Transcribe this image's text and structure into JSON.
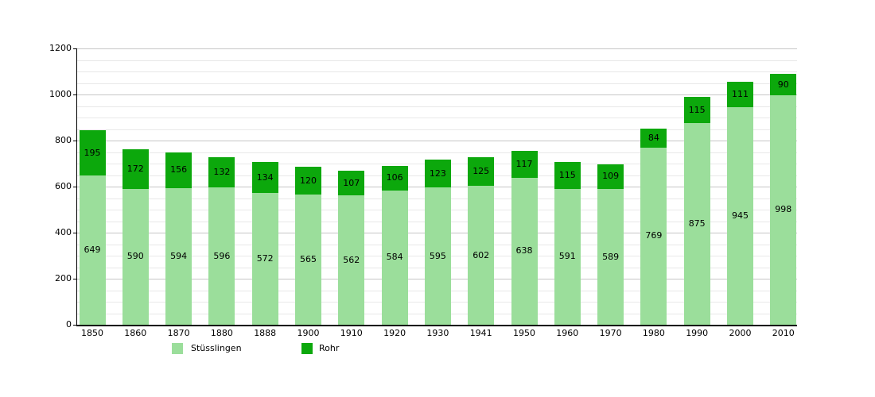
{
  "chart_data": {
    "type": "bar",
    "stacked": true,
    "title": "",
    "xlabel": "",
    "ylabel": "",
    "categories": [
      "1850",
      "1860",
      "1870",
      "1880",
      "1888",
      "1900",
      "1910",
      "1920",
      "1930",
      "1941",
      "1950",
      "1960",
      "1970",
      "1980",
      "1990",
      "2000",
      "2010"
    ],
    "series": [
      {
        "name": "Stüsslingen",
        "color": "#9bde9b",
        "values": [
          649,
          590,
          594,
          596,
          572,
          565,
          562,
          584,
          595,
          602,
          638,
          591,
          589,
          769,
          875,
          945,
          998
        ]
      },
      {
        "name": "Rohr",
        "color": "#0ca80c",
        "values": [
          195,
          172,
          156,
          132,
          134,
          120,
          107,
          106,
          123,
          125,
          117,
          115,
          109,
          84,
          115,
          111,
          90
        ]
      }
    ],
    "ylim": [
      0,
      1200
    ],
    "y_major_step": 200,
    "y_minor_step": 50,
    "y_tick_labels": [
      "0",
      "200",
      "400",
      "600",
      "800",
      "1000",
      "1200"
    ],
    "grid": true,
    "bar_value_labels": true,
    "legend_position": "bottom",
    "colors": {
      "grid_major": "#c6c6c6",
      "grid_minor": "#e8e8e8",
      "axis": "#000000",
      "text": "#000000",
      "background": "#ffffff"
    }
  }
}
